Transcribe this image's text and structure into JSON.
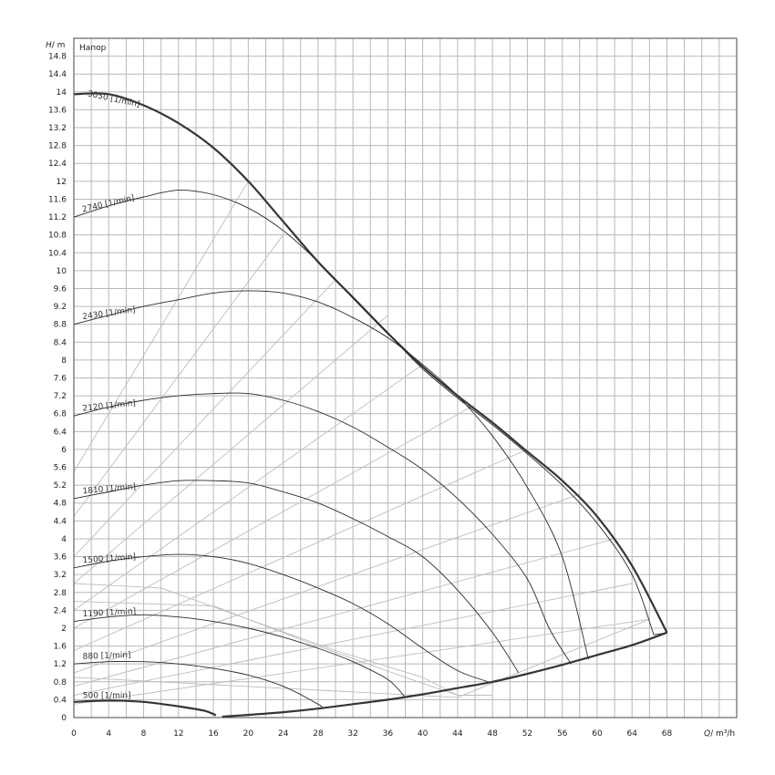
{
  "chart_data": {
    "type": "line",
    "title": "Напор",
    "ylabel_symbol": "H",
    "ylabel_unit": "/ m",
    "xlabel_symbol": "Q",
    "xlabel_unit": "/ m³/h",
    "xlim": [
      0,
      76
    ],
    "ylim": [
      0,
      15.2
    ],
    "x_ticks": [
      0,
      4,
      8,
      12,
      16,
      20,
      24,
      28,
      32,
      36,
      40,
      44,
      48,
      52,
      56,
      60,
      64,
      68
    ],
    "y_ticks": [
      0,
      0.4,
      0.8,
      1.2,
      1.6,
      2,
      2.4,
      2.8,
      3.2,
      3.6,
      4,
      4.4,
      4.8,
      5.2,
      5.6,
      6,
      6.4,
      6.8,
      7.2,
      7.6,
      8,
      8.4,
      8.8,
      9.2,
      9.6,
      10,
      10.4,
      10.8,
      11.2,
      11.6,
      12,
      12.4,
      12.8,
      13.2,
      13.6,
      14,
      14.4,
      14.8
    ],
    "grid": true,
    "series": [
      {
        "name": "3050 [1/min]",
        "bold": true,
        "points": [
          [
            0,
            13.95
          ],
          [
            4,
            13.95
          ],
          [
            8,
            13.7
          ],
          [
            12,
            13.3
          ],
          [
            16,
            12.75
          ],
          [
            20,
            12.0
          ],
          [
            24,
            11.1
          ],
          [
            28,
            10.2
          ],
          [
            32,
            9.4
          ],
          [
            36,
            8.6
          ],
          [
            40,
            7.85
          ],
          [
            44,
            7.2
          ],
          [
            48,
            6.6
          ],
          [
            52,
            5.95
          ],
          [
            56,
            5.3
          ],
          [
            60,
            4.5
          ],
          [
            64,
            3.4
          ],
          [
            68,
            1.9
          ]
        ]
      },
      {
        "name": "2740 [1/min]",
        "bold": false,
        "points": [
          [
            0,
            11.2
          ],
          [
            4,
            11.45
          ],
          [
            8,
            11.65
          ],
          [
            12,
            11.8
          ],
          [
            16,
            11.7
          ],
          [
            20,
            11.4
          ],
          [
            24,
            10.9
          ],
          [
            28,
            10.2
          ],
          [
            32,
            9.4
          ],
          [
            36,
            8.6
          ],
          [
            40,
            7.8
          ],
          [
            44,
            7.15
          ],
          [
            48,
            6.55
          ],
          [
            52,
            5.9
          ],
          [
            56,
            5.2
          ],
          [
            60,
            4.35
          ],
          [
            64,
            3.2
          ],
          [
            66.5,
            1.85
          ]
        ]
      },
      {
        "name": "2430 [1/min]",
        "bold": false,
        "points": [
          [
            0,
            8.8
          ],
          [
            4,
            9.0
          ],
          [
            8,
            9.2
          ],
          [
            12,
            9.35
          ],
          [
            16,
            9.5
          ],
          [
            20,
            9.55
          ],
          [
            24,
            9.5
          ],
          [
            28,
            9.3
          ],
          [
            32,
            8.95
          ],
          [
            36,
            8.5
          ],
          [
            40,
            7.9
          ],
          [
            44,
            7.2
          ],
          [
            48,
            6.3
          ],
          [
            52,
            5.15
          ],
          [
            56,
            3.6
          ],
          [
            59,
            1.3
          ]
        ]
      },
      {
        "name": "2120 [1/min]",
        "bold": false,
        "points": [
          [
            0,
            6.75
          ],
          [
            4,
            6.95
          ],
          [
            8,
            7.1
          ],
          [
            12,
            7.2
          ],
          [
            16,
            7.25
          ],
          [
            20,
            7.25
          ],
          [
            24,
            7.1
          ],
          [
            28,
            6.85
          ],
          [
            32,
            6.5
          ],
          [
            36,
            6.05
          ],
          [
            40,
            5.55
          ],
          [
            44,
            4.9
          ],
          [
            48,
            4.1
          ],
          [
            52,
            3.1
          ],
          [
            54.5,
            2.0
          ],
          [
            57,
            1.2
          ]
        ]
      },
      {
        "name": "1810 [1/min]",
        "bold": false,
        "points": [
          [
            0,
            4.9
          ],
          [
            4,
            5.05
          ],
          [
            8,
            5.2
          ],
          [
            12,
            5.3
          ],
          [
            16,
            5.3
          ],
          [
            20,
            5.25
          ],
          [
            24,
            5.05
          ],
          [
            28,
            4.8
          ],
          [
            32,
            4.45
          ],
          [
            36,
            4.05
          ],
          [
            40,
            3.6
          ],
          [
            44,
            2.85
          ],
          [
            48,
            1.9
          ],
          [
            51,
            1.0
          ]
        ]
      },
      {
        "name": "1500 [1/min]",
        "bold": false,
        "points": [
          [
            0,
            3.35
          ],
          [
            4,
            3.5
          ],
          [
            8,
            3.6
          ],
          [
            12,
            3.65
          ],
          [
            16,
            3.6
          ],
          [
            20,
            3.45
          ],
          [
            24,
            3.2
          ],
          [
            28,
            2.9
          ],
          [
            32,
            2.55
          ],
          [
            36,
            2.1
          ],
          [
            40,
            1.55
          ],
          [
            44,
            1.05
          ],
          [
            47.5,
            0.8
          ]
        ]
      },
      {
        "name": "1190 [1/min]",
        "bold": false,
        "points": [
          [
            0,
            2.15
          ],
          [
            4,
            2.25
          ],
          [
            8,
            2.3
          ],
          [
            12,
            2.25
          ],
          [
            16,
            2.15
          ],
          [
            20,
            2.0
          ],
          [
            24,
            1.8
          ],
          [
            28,
            1.55
          ],
          [
            32,
            1.25
          ],
          [
            36,
            0.85
          ],
          [
            38,
            0.45
          ]
        ]
      },
      {
        "name": "880 [1/min]",
        "bold": false,
        "points": [
          [
            0,
            1.2
          ],
          [
            4,
            1.25
          ],
          [
            8,
            1.25
          ],
          [
            12,
            1.2
          ],
          [
            16,
            1.1
          ],
          [
            20,
            0.95
          ],
          [
            24,
            0.7
          ],
          [
            28,
            0.3
          ],
          [
            28.5,
            0.2
          ]
        ]
      },
      {
        "name": "500 [1/min]",
        "bold": true,
        "points": [
          [
            0,
            0.35
          ],
          [
            4,
            0.38
          ],
          [
            8,
            0.35
          ],
          [
            12,
            0.25
          ],
          [
            15,
            0.15
          ],
          [
            16.3,
            0.05
          ]
        ]
      },
      {
        "name": "",
        "bold": true,
        "points": [
          [
            17,
            0.02
          ],
          [
            20,
            0.06
          ],
          [
            24,
            0.12
          ],
          [
            28,
            0.2
          ],
          [
            32,
            0.3
          ],
          [
            36,
            0.4
          ],
          [
            40,
            0.52
          ],
          [
            44,
            0.66
          ],
          [
            48,
            0.8
          ],
          [
            52,
            0.98
          ],
          [
            56,
            1.18
          ],
          [
            60,
            1.4
          ],
          [
            64,
            1.62
          ],
          [
            68,
            1.9
          ]
        ]
      },
      {
        "name": "",
        "bold": false,
        "points": [
          [
            66.5,
            1.85
          ],
          [
            68,
            1.9
          ]
        ]
      }
    ],
    "efficiency_lines_note": "",
    "efficiency_lines": [
      {
        "points": [
          [
            0,
            5.5
          ],
          [
            20,
            12.0
          ]
        ]
      },
      {
        "points": [
          [
            0,
            4.5
          ],
          [
            24,
            10.8
          ]
        ]
      },
      {
        "points": [
          [
            0,
            3.6
          ],
          [
            30,
            9.8
          ]
        ]
      },
      {
        "points": [
          [
            0,
            3.0
          ],
          [
            36,
            9.0
          ]
        ]
      },
      {
        "points": [
          [
            0,
            2.4
          ],
          [
            40,
            7.9
          ]
        ]
      },
      {
        "points": [
          [
            0,
            2.0
          ],
          [
            46,
            7.0
          ]
        ]
      },
      {
        "points": [
          [
            0,
            1.5
          ],
          [
            52,
            6.0
          ]
        ]
      },
      {
        "points": [
          [
            0,
            1.0
          ],
          [
            58,
            5.0
          ]
        ]
      },
      {
        "points": [
          [
            0,
            0.7
          ],
          [
            62,
            4.0
          ]
        ]
      },
      {
        "points": [
          [
            0,
            0.5
          ],
          [
            64,
            3.0
          ]
        ]
      },
      {
        "points": [
          [
            0,
            0.3
          ],
          [
            66,
            2.2
          ]
        ]
      },
      {
        "points": [
          [
            0,
            3.0
          ],
          [
            10,
            2.9
          ],
          [
            20,
            2.2
          ],
          [
            30,
            1.5
          ],
          [
            40,
            0.9
          ],
          [
            44,
            0.5
          ]
        ]
      },
      {
        "points": [
          [
            0,
            2.6
          ],
          [
            16,
            2.5
          ],
          [
            28,
            1.6
          ],
          [
            38,
            0.9
          ],
          [
            44,
            0.5
          ],
          [
            48,
            0.5
          ]
        ]
      },
      {
        "points": [
          [
            0,
            0.9
          ],
          [
            44,
            0.45
          ],
          [
            66,
            2.2
          ]
        ]
      }
    ],
    "curve_labels": [
      {
        "text": "3050 [1/min]",
        "x": 1.0,
        "y": 13.85,
        "angle": 12
      },
      {
        "text": "2740 [1/min]",
        "x": 0.5,
        "y": 11.25,
        "angle": -13
      },
      {
        "text": "2430 [1/min]",
        "x": 0.5,
        "y": 8.85,
        "angle": -8
      },
      {
        "text": "2120 [1/min]",
        "x": 0.5,
        "y": 6.8,
        "angle": -6
      },
      {
        "text": "1810 [1/min]",
        "x": 0.5,
        "y": 4.95,
        "angle": -5
      },
      {
        "text": "1500 [1/min]",
        "x": 0.5,
        "y": 3.4,
        "angle": -4
      },
      {
        "text": "1190 [1/min]",
        "x": 0.5,
        "y": 2.2,
        "angle": -3
      },
      {
        "text": "880 [1/min]",
        "x": 0.5,
        "y": 1.25,
        "angle": -2
      },
      {
        "text": "500 [1/min]",
        "x": 0.5,
        "y": 0.38,
        "angle": 0
      }
    ]
  }
}
